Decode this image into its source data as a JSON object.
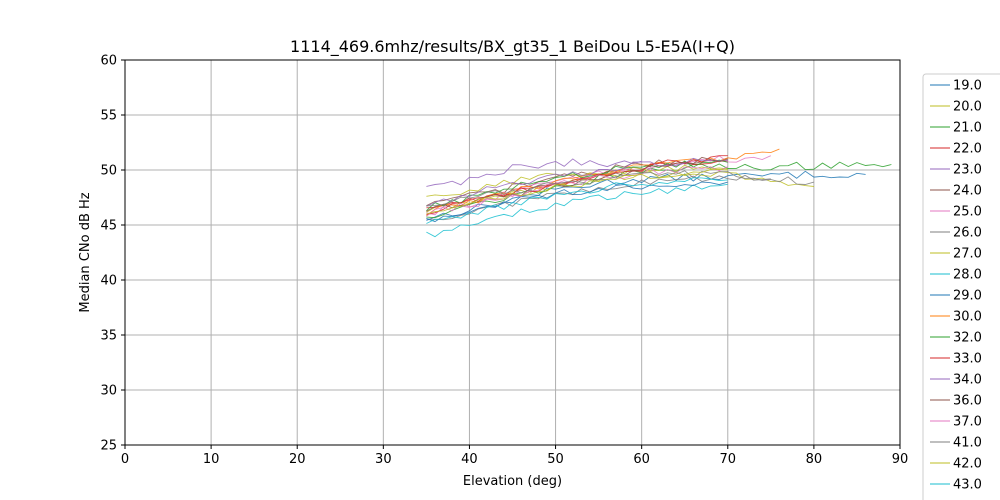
{
  "chart_data": {
    "type": "line",
    "title": "1114_469.6mhz/results/BX_gt35_1 BeiDou L5-E5A(I+Q)",
    "xlabel": "Elevation (deg)",
    "ylabel": "Median CNo dB Hz",
    "xlim": [
      0,
      90
    ],
    "ylim": [
      25,
      60
    ],
    "xticks": [
      0,
      10,
      20,
      30,
      40,
      50,
      60,
      70,
      80,
      90
    ],
    "yticks": [
      25,
      30,
      35,
      40,
      45,
      50,
      55,
      60
    ],
    "grid": true,
    "legend": "right",
    "series": [
      {
        "name": "19.0",
        "color": "#1f77b4",
        "x": [
          35,
          40,
          45,
          50,
          55,
          60,
          65,
          70,
          75,
          80,
          86
        ],
        "y": [
          45.6,
          46.4,
          47.3,
          48.2,
          48.8,
          49.2,
          49.3,
          49.4,
          49.5,
          49.6,
          49.6
        ]
      },
      {
        "name": "20.0",
        "color": "#bcbd22",
        "x": [
          35,
          40,
          45,
          50,
          55,
          60,
          65,
          70,
          75,
          80
        ],
        "y": [
          46.3,
          47.0,
          47.9,
          48.6,
          49.2,
          49.6,
          49.7,
          49.5,
          49.0,
          48.5
        ]
      },
      {
        "name": "21.0",
        "color": "#2ca02c",
        "x": [
          35,
          40,
          45,
          50,
          55,
          60,
          65,
          70,
          75,
          80,
          85,
          89
        ],
        "y": [
          45.8,
          46.8,
          47.6,
          48.5,
          49.2,
          49.8,
          50.2,
          50.4,
          50.3,
          50.4,
          50.6,
          50.5
        ]
      },
      {
        "name": "22.0",
        "color": "#d62728",
        "x": [
          35,
          40,
          45,
          50,
          55,
          60,
          65,
          70
        ],
        "y": [
          46.6,
          47.3,
          48.0,
          48.7,
          49.4,
          50.1,
          50.6,
          50.8
        ]
      },
      {
        "name": "23.0",
        "color": "#9467bd",
        "x": [
          35,
          40,
          45,
          50,
          55,
          60
        ],
        "y": [
          48.5,
          49.1,
          50.2,
          50.7,
          50.6,
          50.8
        ]
      },
      {
        "name": "24.0",
        "color": "#8c564b",
        "x": [
          35,
          40,
          45,
          50,
          55,
          60,
          65,
          70
        ],
        "y": [
          46.7,
          47.6,
          48.4,
          49.3,
          49.9,
          50.5,
          50.8,
          51.1
        ]
      },
      {
        "name": "25.0",
        "color": "#e377c2",
        "x": [
          35,
          40,
          45,
          50,
          55,
          60,
          65,
          70,
          75
        ],
        "y": [
          46.0,
          46.9,
          47.9,
          48.9,
          49.7,
          50.3,
          50.7,
          51.0,
          51.3
        ]
      },
      {
        "name": "26.0",
        "color": "#7f7f7f",
        "x": [
          35,
          40,
          45,
          50,
          55,
          60,
          65,
          70,
          75
        ],
        "y": [
          45.4,
          46.2,
          47.0,
          47.8,
          48.4,
          48.8,
          49.1,
          49.3,
          49.2
        ]
      },
      {
        "name": "27.0",
        "color": "#bcbd22",
        "x": [
          35,
          40,
          45,
          50,
          55,
          60,
          65,
          70
        ],
        "y": [
          47.4,
          48.3,
          49.0,
          49.5,
          49.8,
          50.0,
          50.2,
          50.1
        ]
      },
      {
        "name": "28.0",
        "color": "#17becf",
        "x": [
          35,
          40,
          45,
          50,
          55,
          60,
          65,
          70
        ],
        "y": [
          44.1,
          45.0,
          46.0,
          46.9,
          47.4,
          47.9,
          48.4,
          48.7
        ]
      },
      {
        "name": "29.0",
        "color": "#1f77b4",
        "x": [
          35,
          40,
          45,
          50,
          55,
          60,
          65,
          70
        ],
        "y": [
          45.3,
          46.1,
          47.2,
          47.8,
          48.2,
          48.6,
          48.8,
          48.9
        ]
      },
      {
        "name": "30.0",
        "color": "#ff7f0e",
        "x": [
          35,
          40,
          45,
          50,
          55,
          60,
          65,
          70,
          76
        ],
        "y": [
          46.2,
          47.1,
          48.0,
          48.9,
          49.6,
          50.3,
          50.9,
          51.2,
          51.9
        ]
      },
      {
        "name": "32.0",
        "color": "#2ca02c",
        "x": [
          35,
          40,
          45,
          50,
          55,
          60,
          65,
          70
        ],
        "y": [
          46.6,
          47.5,
          48.4,
          49.2,
          49.8,
          50.3,
          50.6,
          50.7
        ]
      },
      {
        "name": "33.0",
        "color": "#d62728",
        "x": [
          35,
          40,
          45,
          50,
          55,
          60,
          65,
          70
        ],
        "y": [
          46.2,
          47.0,
          47.9,
          48.7,
          49.4,
          50.2,
          50.9,
          51.3
        ]
      },
      {
        "name": "34.0",
        "color": "#9467bd",
        "x": [
          35,
          40,
          45,
          50,
          55,
          60,
          65,
          70
        ],
        "y": [
          46.9,
          47.9,
          48.9,
          49.5,
          50.0,
          50.5,
          50.8,
          50.9
        ]
      },
      {
        "name": "36.0",
        "color": "#8c564b",
        "x": [
          35,
          40,
          45,
          50,
          55,
          60,
          65,
          70
        ],
        "y": [
          46.4,
          47.1,
          47.8,
          48.6,
          49.3,
          50.0,
          50.7,
          51.0
        ]
      },
      {
        "name": "37.0",
        "color": "#e377c2",
        "x": [
          35,
          40,
          45,
          50,
          55,
          60,
          65,
          70
        ],
        "y": [
          45.9,
          46.8,
          47.7,
          48.6,
          49.2,
          49.8,
          50.1,
          50.3
        ]
      },
      {
        "name": "41.0",
        "color": "#7f7f7f",
        "x": [
          35,
          40,
          45,
          50,
          55,
          60,
          65,
          70,
          75,
          80
        ],
        "y": [
          46.8,
          47.5,
          48.1,
          48.6,
          49.0,
          49.4,
          49.6,
          49.6,
          49.3,
          48.9
        ]
      },
      {
        "name": "42.0",
        "color": "#bcbd22",
        "x": [
          35,
          40,
          45,
          50,
          55,
          60,
          65,
          70
        ],
        "y": [
          46.0,
          46.9,
          47.8,
          48.5,
          49.0,
          49.5,
          49.8,
          50.0
        ]
      },
      {
        "name": "43.0",
        "color": "#17becf",
        "x": [
          35,
          40,
          45,
          50,
          55,
          60,
          65,
          70
        ],
        "y": [
          45.1,
          46.0,
          46.9,
          47.7,
          48.3,
          48.8,
          49.0,
          49.1
        ]
      }
    ]
  }
}
